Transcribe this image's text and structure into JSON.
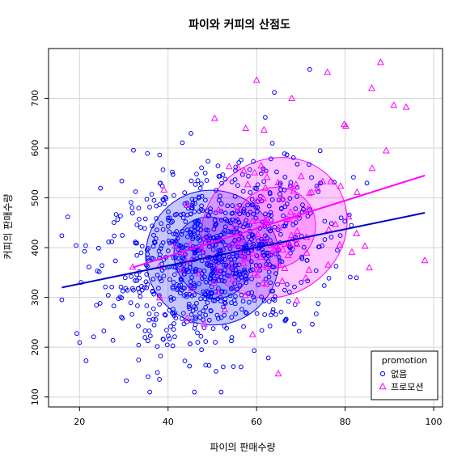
{
  "chart_data": {
    "type": "scatter",
    "title": "파이와 커피의 산점도",
    "xlabel": "파이의 판매수량",
    "ylabel": "커피의 판매수량",
    "xlim": [
      13,
      102
    ],
    "ylim": [
      80,
      800
    ],
    "x_ticks": [
      20,
      40,
      60,
      80,
      100
    ],
    "y_ticks": [
      100,
      200,
      300,
      400,
      500,
      600,
      700
    ],
    "grid": true,
    "legend": {
      "title": "promotion",
      "position": "bottom-right",
      "entries": [
        "없음",
        "프로모션"
      ]
    },
    "colors": {
      "없음": "#0000ff",
      "프로모션": "#ff00ff",
      "none_line": "#0000cc",
      "promo_line": "#ff00ff"
    },
    "series": [
      {
        "name": "없음",
        "marker": "circle",
        "count": 900,
        "mean": [
          50,
          380
        ],
        "sd": [
          12,
          90
        ],
        "corr": 0.25,
        "x_range": [
          16,
          98
        ],
        "regression": {
          "x": [
            16,
            98
          ],
          "y": [
            320,
            470
          ]
        },
        "ellipses": [
          {
            "level": 0.5,
            "center": [
              50,
              380
            ],
            "semi_axes": [
              84,
              10.5
            ],
            "angle_deg": 30
          },
          {
            "level": 0.95,
            "center": [
              50,
              380
            ],
            "semi_axes": [
              150,
              17
            ],
            "angle_deg": 30
          }
        ]
      },
      {
        "name": "프로모션",
        "marker": "triangle",
        "count": 120,
        "mean": [
          64,
          445
        ],
        "sd": [
          12,
          95
        ],
        "corr": 0.35,
        "x_range": [
          32,
          98
        ],
        "regression": {
          "x": [
            32,
            98
          ],
          "y": [
            360,
            545
          ]
        },
        "ellipses": [
          {
            "level": 0.5,
            "center": [
              64,
              440
            ],
            "semi_axes": [
              95,
              10
            ],
            "angle_deg": 35
          },
          {
            "level": 0.95,
            "center": [
              64,
              440
            ],
            "semi_axes": [
              170,
              17
            ],
            "angle_deg": 35
          }
        ]
      }
    ],
    "highlighted_points": [
      {
        "series": "프로모션",
        "x": 88,
        "y": 772
      },
      {
        "series": "프로모션",
        "x": 60,
        "y": 736
      },
      {
        "series": "프로모션",
        "x": 76,
        "y": 752
      },
      {
        "series": "프로모션",
        "x": 86,
        "y": 720
      },
      {
        "series": "프로모션",
        "x": 91,
        "y": 686
      },
      {
        "series": "프로모션",
        "x": 98,
        "y": 374
      },
      {
        "series": "없음",
        "x": 72,
        "y": 758
      },
      {
        "series": "없음",
        "x": 64,
        "y": 712
      },
      {
        "series": "없음",
        "x": 16,
        "y": 424
      },
      {
        "series": "없음",
        "x": 52,
        "y": 110
      }
    ]
  }
}
